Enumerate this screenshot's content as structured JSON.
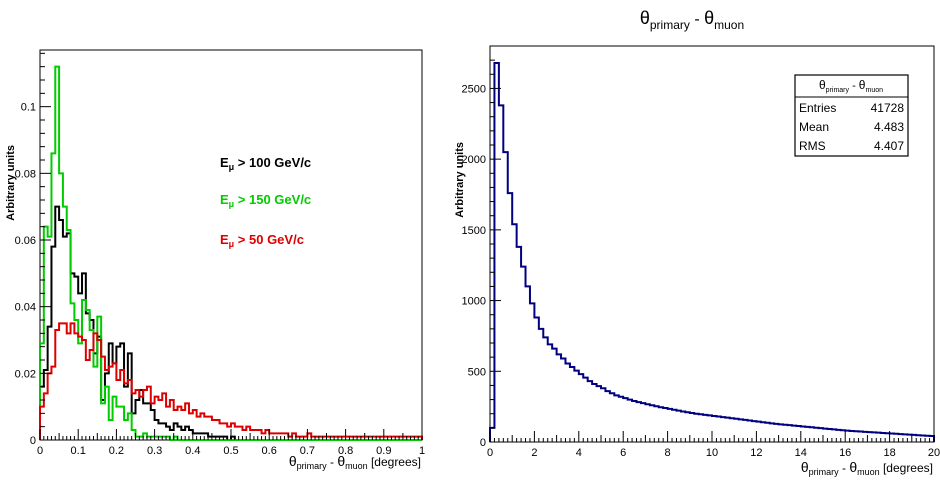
{
  "chart_data": [
    {
      "type": "histogram",
      "xlabel": {
        "theta": "θ",
        "sub1": "primary",
        "minus": " - ",
        "sub2": "muon",
        "unit": " [degrees]"
      },
      "ylabel": "Arbitrary units",
      "xlim": [
        0,
        1
      ],
      "ylim": [
        0,
        0.117
      ],
      "x_ticks": [
        "0",
        "0.1",
        "0.2",
        "0.3",
        "0.4",
        "0.5",
        "0.6",
        "0.7",
        "0.8",
        "0.9",
        "1"
      ],
      "y_ticks": [
        {
          "v": 0,
          "label": "0"
        },
        {
          "v": 0.02,
          "label": "0.02"
        },
        {
          "v": 0.04,
          "label": "0.04"
        },
        {
          "v": 0.06,
          "label": "0.06"
        },
        {
          "v": 0.08,
          "label": "0.08"
        },
        {
          "v": 0.1,
          "label": "0.1"
        }
      ],
      "bin_width": 0.01,
      "series": [
        {
          "name": "E_μ > 100 GeV/c",
          "legend": {
            "main": "E",
            "sub": "μ",
            "rest": " > 100 GeV/c"
          },
          "color": "#000000",
          "values": [
            0.016,
            0.021,
            0.034,
            0.058,
            0.07,
            0.066,
            0.061,
            0.062,
            0.05,
            0.049,
            0.044,
            0.05,
            0.038,
            0.036,
            0.026,
            0.031,
            0.012,
            0.02,
            0.029,
            0.023,
            0.028,
            0.029,
            0.016,
            0.026,
            0.008,
            0.012,
            0.015,
            0.011,
            0.011,
            0.009,
            0.006,
            0.005,
            0.005,
            0.004,
            0.003,
            0.005,
            0.004,
            0.003,
            0.004,
            0.003,
            0.002,
            0.002,
            0.002,
            0.002,
            0.001,
            0.001,
            0.001,
            0.001,
            0.001,
            0,
            0.001,
            0,
            0,
            0,
            0,
            0,
            0,
            0,
            0,
            0,
            0,
            0,
            0,
            0,
            0,
            0,
            0,
            0,
            0,
            0,
            0,
            0,
            0,
            0,
            0,
            0,
            0,
            0,
            0,
            0,
            0,
            0,
            0,
            0,
            0,
            0,
            0,
            0,
            0,
            0,
            0,
            0,
            0,
            0,
            0,
            0,
            0,
            0,
            0,
            0
          ]
        },
        {
          "name": "E_μ > 150 GeV/c",
          "legend": {
            "main": "E",
            "sub": "μ",
            "rest": " > 150 GeV/c"
          },
          "color": "#00cc00",
          "values": [
            0.029,
            0.064,
            0.061,
            0.086,
            0.112,
            0.08,
            0.07,
            0.063,
            0.041,
            0.036,
            0.029,
            0.042,
            0.039,
            0.033,
            0.022,
            0.037,
            0.011,
            0.016,
            0.006,
            0.013,
            0.01,
            0.01,
            0.006,
            0.008,
            0.003,
            0.001,
            0.001,
            0.002,
            0.001,
            0.001,
            0.001,
            0.001,
            0.001,
            0.001,
            0,
            0.001,
            0,
            0,
            0,
            0,
            0,
            0,
            0,
            0,
            0,
            0,
            0,
            0,
            0,
            0,
            0,
            0,
            0,
            0,
            0,
            0,
            0,
            0,
            0,
            0,
            0,
            0,
            0,
            0,
            0,
            0,
            0,
            0,
            0,
            0,
            0,
            0,
            0,
            0,
            0,
            0,
            0,
            0,
            0,
            0,
            0,
            0,
            0,
            0,
            0,
            0,
            0,
            0,
            0,
            0,
            0,
            0,
            0,
            0,
            0,
            0,
            0,
            0,
            0,
            0
          ]
        },
        {
          "name": "E_μ > 50 GeV/c",
          "legend": {
            "main": "E",
            "sub": "μ",
            "rest": " > 50 GeV/c"
          },
          "color": "#dd0000",
          "values": [
            0.01,
            0.014,
            0.02,
            0.022,
            0.033,
            0.035,
            0.035,
            0.032,
            0.035,
            0.032,
            0.031,
            0.03,
            0.024,
            0.027,
            0.032,
            0.03,
            0.025,
            0.021,
            0.022,
            0.023,
            0.018,
            0.021,
            0.017,
            0.018,
            0.014,
            0.015,
            0.013,
            0.015,
            0.016,
            0.011,
            0.013,
            0.012,
            0.014,
            0.01,
            0.012,
            0.009,
            0.01,
            0.009,
            0.011,
            0.008,
            0.009,
            0.007,
            0.008,
            0.007,
            0.007,
            0.006,
            0.006,
            0.005,
            0.005,
            0.004,
            0.005,
            0.004,
            0.004,
            0.003,
            0.004,
            0.003,
            0.003,
            0.003,
            0.002,
            0.003,
            0.002,
            0.002,
            0.002,
            0.002,
            0.002,
            0.001,
            0.002,
            0.001,
            0.001,
            0.001,
            0.002,
            0.001,
            0.001,
            0.001,
            0.001,
            0.001,
            0.001,
            0.001,
            0.001,
            0.001,
            0.001,
            0.001,
            0.001,
            0.001,
            0.001,
            0.001,
            0.001,
            0.001,
            0.001,
            0.001,
            0.001,
            0.001,
            0.001,
            0.001,
            0.001,
            0.001,
            0.001,
            0.001,
            0.001,
            0.001
          ]
        }
      ]
    },
    {
      "type": "histogram",
      "title": {
        "theta": "θ",
        "sub1": "primary",
        "minus": " - ",
        "sub2": "muon"
      },
      "xlabel": {
        "theta": "θ",
        "sub1": "primary",
        "minus": " - ",
        "sub2": "muon",
        "unit": " [degrees]"
      },
      "ylabel": "Arbitrary units",
      "xlim": [
        0,
        20
      ],
      "ylim": [
        0,
        2800
      ],
      "x_ticks": [
        "0",
        "2",
        "4",
        "6",
        "8",
        "10",
        "12",
        "14",
        "16",
        "18",
        "20"
      ],
      "y_ticks": [
        {
          "v": 0,
          "label": "0"
        },
        {
          "v": 500,
          "label": "500"
        },
        {
          "v": 1000,
          "label": "1000"
        },
        {
          "v": 1500,
          "label": "1500"
        },
        {
          "v": 2000,
          "label": "2000"
        },
        {
          "v": 2500,
          "label": "2500"
        }
      ],
      "bin_width": 0.2,
      "series": [
        {
          "name": "",
          "color": "#000080",
          "values": [
            100,
            2680,
            2380,
            2050,
            1760,
            1540,
            1380,
            1240,
            1100,
            980,
            880,
            800,
            740,
            690,
            660,
            620,
            590,
            555,
            530,
            505,
            480,
            455,
            430,
            410,
            395,
            380,
            360,
            345,
            330,
            320,
            310,
            300,
            290,
            282,
            275,
            267,
            260,
            253,
            246,
            240,
            234,
            228,
            222,
            216,
            210,
            205,
            200,
            196,
            192,
            188,
            184,
            180,
            176,
            172,
            168,
            164,
            160,
            156,
            152,
            148,
            144,
            140,
            136,
            132,
            128,
            125,
            122,
            119,
            116,
            113,
            110,
            107,
            104,
            101,
            98,
            95,
            92,
            89,
            86,
            83,
            80,
            78,
            76,
            74,
            72,
            70,
            68,
            66,
            64,
            62,
            60,
            58,
            56,
            54,
            52,
            50,
            48,
            46,
            44,
            42
          ]
        }
      ],
      "stats_box": {
        "title": {
          "theta": "θ",
          "sub1": "primary",
          "minus": " - ",
          "sub2": "muon"
        },
        "rows": [
          {
            "label": "Entries",
            "value": "41728"
          },
          {
            "label": "Mean",
            "value": "4.483"
          },
          {
            "label": "RMS",
            "value": "4.407"
          }
        ]
      }
    }
  ]
}
